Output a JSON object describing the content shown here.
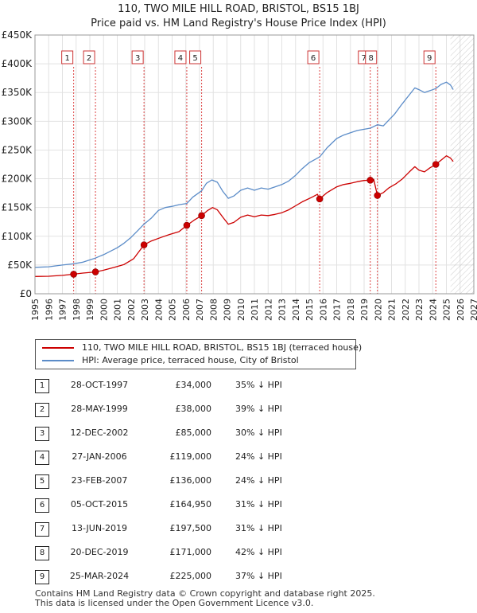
{
  "title_line1": "110, TWO MILE HILL ROAD, BRISTOL, BS15 1BJ",
  "title_line2": "Price paid vs. HM Land Registry's House Price Index (HPI)",
  "colors": {
    "property": "#cc0000",
    "hpi": "#5b8cc8",
    "grid": "#e2e2e2",
    "marker_vline": "#dd4444",
    "future_hatch": "#999999"
  },
  "legend": {
    "property_label": "110, TWO MILE HILL ROAD, BRISTOL, BS15 1BJ (terraced house)",
    "hpi_label": "HPI: Average price, terraced house, City of Bristol"
  },
  "chart_data": {
    "type": "line",
    "title": "Price paid vs. HM Land Registry's House Price Index (HPI)",
    "xlim": [
      1995,
      2027
    ],
    "ylim": [
      0,
      450000
    ],
    "x_ticks": [
      "1995",
      "1996",
      "1997",
      "1998",
      "1999",
      "2000",
      "2001",
      "2002",
      "2003",
      "2004",
      "2005",
      "2006",
      "2007",
      "2008",
      "2009",
      "2010",
      "2011",
      "2012",
      "2013",
      "2014",
      "2015",
      "2016",
      "2017",
      "2018",
      "2019",
      "2020",
      "2021",
      "2022",
      "2023",
      "2024",
      "2025",
      "2026",
      "2027"
    ],
    "y_ticks": [
      {
        "value": 0,
        "label": "£0"
      },
      {
        "value": 50000,
        "label": "£50K"
      },
      {
        "value": 100000,
        "label": "£100K"
      },
      {
        "value": 150000,
        "label": "£150K"
      },
      {
        "value": 200000,
        "label": "£200K"
      },
      {
        "value": 250000,
        "label": "£250K"
      },
      {
        "value": 300000,
        "label": "£300K"
      },
      {
        "value": 350000,
        "label": "£350K"
      },
      {
        "value": 400000,
        "label": "£400K"
      },
      {
        "value": 450000,
        "label": "£450K"
      }
    ],
    "forecast_start": 2025.3,
    "series": [
      {
        "name": "HPI: Average price, terraced house, City of Bristol",
        "points": [
          [
            1995.0,
            46000
          ],
          [
            1996.0,
            47000
          ],
          [
            1997.0,
            50000
          ],
          [
            1997.8,
            52000
          ],
          [
            1998.5,
            55000
          ],
          [
            1999.4,
            62000
          ],
          [
            2000.0,
            68000
          ],
          [
            2000.5,
            74000
          ],
          [
            2001.0,
            80000
          ],
          [
            2001.5,
            88000
          ],
          [
            2002.0,
            98000
          ],
          [
            2002.5,
            110000
          ],
          [
            2002.95,
            121000
          ],
          [
            2003.5,
            132000
          ],
          [
            2004.0,
            145000
          ],
          [
            2004.5,
            150000
          ],
          [
            2005.0,
            152000
          ],
          [
            2005.5,
            155000
          ],
          [
            2006.07,
            157000
          ],
          [
            2006.5,
            168000
          ],
          [
            2007.15,
            179000
          ],
          [
            2007.5,
            192000
          ],
          [
            2007.9,
            198000
          ],
          [
            2008.3,
            194000
          ],
          [
            2008.7,
            178000
          ],
          [
            2009.1,
            166000
          ],
          [
            2009.5,
            170000
          ],
          [
            2010.0,
            180000
          ],
          [
            2010.5,
            184000
          ],
          [
            2011.0,
            180000
          ],
          [
            2011.5,
            184000
          ],
          [
            2012.0,
            182000
          ],
          [
            2012.5,
            186000
          ],
          [
            2013.0,
            190000
          ],
          [
            2013.5,
            196000
          ],
          [
            2014.0,
            206000
          ],
          [
            2014.5,
            218000
          ],
          [
            2015.0,
            228000
          ],
          [
            2015.76,
            238000
          ],
          [
            2016.3,
            254000
          ],
          [
            2017.0,
            270000
          ],
          [
            2017.5,
            276000
          ],
          [
            2018.0,
            280000
          ],
          [
            2018.5,
            284000
          ],
          [
            2019.0,
            286000
          ],
          [
            2019.45,
            288000
          ],
          [
            2019.97,
            294000
          ],
          [
            2020.4,
            292000
          ],
          [
            2020.8,
            302000
          ],
          [
            2021.2,
            312000
          ],
          [
            2021.7,
            328000
          ],
          [
            2022.3,
            346000
          ],
          [
            2022.7,
            358000
          ],
          [
            2023.0,
            355000
          ],
          [
            2023.4,
            350000
          ],
          [
            2023.9,
            354000
          ],
          [
            2024.23,
            357000
          ],
          [
            2024.6,
            364000
          ],
          [
            2025.0,
            368000
          ],
          [
            2025.3,
            363000
          ],
          [
            2025.5,
            355000
          ]
        ]
      },
      {
        "name": "110, TWO MILE HILL ROAD, BRISTOL, BS15 1BJ (terraced house)",
        "points": [
          [
            1995.0,
            30000
          ],
          [
            1996.0,
            30500
          ],
          [
            1997.0,
            32000
          ],
          [
            1997.82,
            34000
          ],
          [
            1998.5,
            36000
          ],
          [
            1999.41,
            38000
          ],
          [
            2000.0,
            41000
          ],
          [
            2000.8,
            46000
          ],
          [
            2001.5,
            51000
          ],
          [
            2002.2,
            61000
          ],
          [
            2002.95,
            85000
          ],
          [
            2003.5,
            92000
          ],
          [
            2004.2,
            98000
          ],
          [
            2004.8,
            103000
          ],
          [
            2005.5,
            108000
          ],
          [
            2006.07,
            119000
          ],
          [
            2006.6,
            128000
          ],
          [
            2007.15,
            136000
          ],
          [
            2007.6,
            145000
          ],
          [
            2007.95,
            150000
          ],
          [
            2008.3,
            146000
          ],
          [
            2008.7,
            133000
          ],
          [
            2009.1,
            121000
          ],
          [
            2009.5,
            124000
          ],
          [
            2010.0,
            133000
          ],
          [
            2010.5,
            137000
          ],
          [
            2011.0,
            134000
          ],
          [
            2011.5,
            137000
          ],
          [
            2012.0,
            136000
          ],
          [
            2012.5,
            138000
          ],
          [
            2013.0,
            141000
          ],
          [
            2013.5,
            146000
          ],
          [
            2014.0,
            153000
          ],
          [
            2014.5,
            160000
          ],
          [
            2015.2,
            168000
          ],
          [
            2015.6,
            173000
          ],
          [
            2015.76,
            164950
          ],
          [
            2016.3,
            176000
          ],
          [
            2017.0,
            186000
          ],
          [
            2017.5,
            190000
          ],
          [
            2018.0,
            192000
          ],
          [
            2018.5,
            195000
          ],
          [
            2019.0,
            197000
          ],
          [
            2019.45,
            197500
          ],
          [
            2019.7,
            199000
          ],
          [
            2019.97,
            171000
          ],
          [
            2020.4,
            176000
          ],
          [
            2020.8,
            184000
          ],
          [
            2021.3,
            191000
          ],
          [
            2021.8,
            200000
          ],
          [
            2022.3,
            212000
          ],
          [
            2022.7,
            221000
          ],
          [
            2023.0,
            215000
          ],
          [
            2023.4,
            212000
          ],
          [
            2023.8,
            219000
          ],
          [
            2024.23,
            225000
          ],
          [
            2024.6,
            232000
          ],
          [
            2025.0,
            240000
          ],
          [
            2025.3,
            236000
          ],
          [
            2025.5,
            230000
          ]
        ]
      }
    ],
    "sales": [
      {
        "n": "1",
        "x": 1997.82,
        "y": 34000
      },
      {
        "n": "2",
        "x": 1999.41,
        "y": 38000
      },
      {
        "n": "3",
        "x": 2002.95,
        "y": 85000
      },
      {
        "n": "4",
        "x": 2006.07,
        "y": 119000
      },
      {
        "n": "5",
        "x": 2007.15,
        "y": 136000
      },
      {
        "n": "6",
        "x": 2015.76,
        "y": 164950
      },
      {
        "n": "7",
        "x": 2019.45,
        "y": 197500
      },
      {
        "n": "8",
        "x": 2019.97,
        "y": 171000
      },
      {
        "n": "9",
        "x": 2024.23,
        "y": 225000
      }
    ]
  },
  "sales_table": [
    {
      "n": "1",
      "date": "28-OCT-1997",
      "price": "£34,000",
      "hpi": "35% ↓ HPI"
    },
    {
      "n": "2",
      "date": "28-MAY-1999",
      "price": "£38,000",
      "hpi": "39% ↓ HPI"
    },
    {
      "n": "3",
      "date": "12-DEC-2002",
      "price": "£85,000",
      "hpi": "30% ↓ HPI"
    },
    {
      "n": "4",
      "date": "27-JAN-2006",
      "price": "£119,000",
      "hpi": "24% ↓ HPI"
    },
    {
      "n": "5",
      "date": "23-FEB-2007",
      "price": "£136,000",
      "hpi": "24% ↓ HPI"
    },
    {
      "n": "6",
      "date": "05-OCT-2015",
      "price": "£164,950",
      "hpi": "31% ↓ HPI"
    },
    {
      "n": "7",
      "date": "13-JUN-2019",
      "price": "£197,500",
      "hpi": "31% ↓ HPI"
    },
    {
      "n": "8",
      "date": "20-DEC-2019",
      "price": "£171,000",
      "hpi": "42% ↓ HPI"
    },
    {
      "n": "9",
      "date": "25-MAR-2024",
      "price": "£225,000",
      "hpi": "37% ↓ HPI"
    }
  ],
  "footer_line1": "Contains HM Land Registry data © Crown copyright and database right 2025.",
  "footer_line2": "This data is licensed under the Open Government Licence v3.0."
}
